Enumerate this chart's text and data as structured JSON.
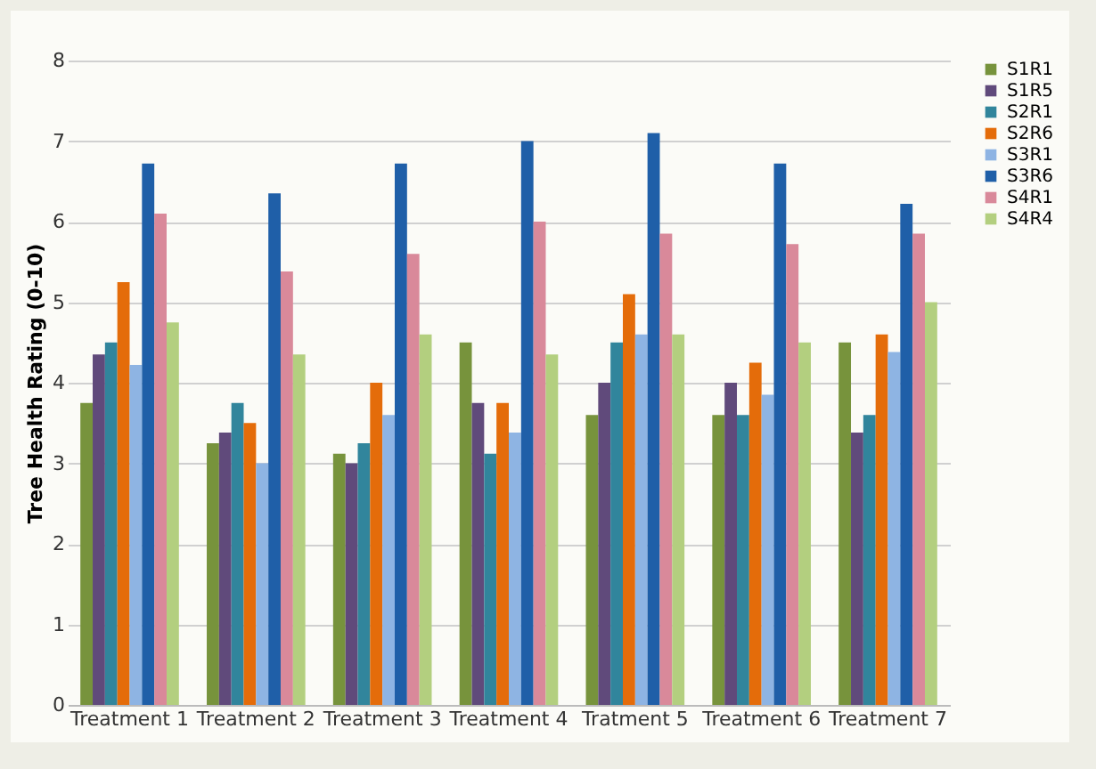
{
  "chart_data": {
    "type": "bar",
    "ylabel": "Tree Health Rating (0-10)",
    "categories": [
      "Treatment 1",
      "Treatment 2",
      "Treatment 3",
      "Treatment 4",
      "Tratment 5",
      "Treatment 6",
      "Treatment 7"
    ],
    "series": [
      {
        "name": "S1R1",
        "color": "#77933c",
        "values": [
          3.75,
          3.25,
          3.12,
          4.5,
          3.6,
          3.6,
          4.5
        ]
      },
      {
        "name": "S1R5",
        "color": "#604a7b",
        "values": [
          4.35,
          3.38,
          3.0,
          3.75,
          4.0,
          4.0,
          3.38
        ]
      },
      {
        "name": "S2R1",
        "color": "#31859c",
        "values": [
          4.5,
          3.75,
          3.25,
          3.12,
          4.5,
          3.6,
          3.6
        ]
      },
      {
        "name": "S2R6",
        "color": "#e46c0a",
        "values": [
          5.25,
          3.5,
          4.0,
          3.75,
          5.1,
          4.25,
          4.6
        ]
      },
      {
        "name": "S3R1",
        "color": "#8eb4e3",
        "values": [
          4.22,
          3.0,
          3.6,
          3.38,
          4.6,
          3.85,
          4.38
        ]
      },
      {
        "name": "S3R6",
        "color": "#1f5fa8",
        "values": [
          6.72,
          6.35,
          6.72,
          7.0,
          7.1,
          6.72,
          6.22
        ]
      },
      {
        "name": "S4R1",
        "color": "#d9899a",
        "values": [
          6.1,
          5.38,
          5.6,
          6.0,
          5.85,
          5.72,
          5.85
        ]
      },
      {
        "name": "S4R4",
        "color": "#b3cf7f",
        "values": [
          4.75,
          4.35,
          4.6,
          4.35,
          4.6,
          4.5,
          5.0
        ]
      }
    ],
    "ylim": [
      0,
      8
    ],
    "yticks": [
      0,
      1,
      2,
      3,
      4,
      5,
      6,
      7,
      8
    ],
    "grid": "y",
    "legend": "right"
  }
}
